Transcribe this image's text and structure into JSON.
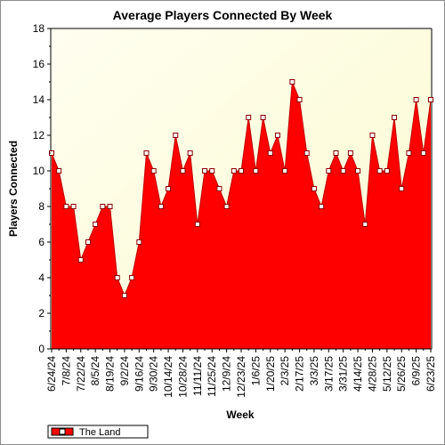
{
  "chart_data": {
    "type": "area",
    "title": "Average Players Connected By Week",
    "xlabel": "Week",
    "ylabel": "Players Connected",
    "ylim": [
      0,
      18
    ],
    "yticks": [
      0,
      2,
      4,
      6,
      8,
      10,
      12,
      14,
      16,
      18
    ],
    "x_tick_labels": [
      "6/24/24",
      "7/8/24",
      "7/22/24",
      "8/5/24",
      "8/19/24",
      "9/2/24",
      "9/16/24",
      "9/30/24",
      "10/14/24",
      "10/28/24",
      "11/11/24",
      "11/25/24",
      "12/9/24",
      "12/23/24",
      "1/6/25",
      "1/20/25",
      "2/3/25",
      "2/17/25",
      "3/3/25",
      "3/17/25",
      "3/31/25",
      "4/14/25",
      "4/28/25",
      "5/12/25",
      "5/26/25",
      "6/9/25",
      "6/23/25"
    ],
    "grid": false,
    "legend_position": "bottom-left",
    "series": [
      {
        "name": "The Land",
        "color": "#ff0000",
        "values": [
          11,
          10,
          8,
          8,
          5,
          6,
          7,
          8,
          8,
          4,
          3,
          4,
          6,
          11,
          10,
          8,
          9,
          12,
          10,
          11,
          7,
          10,
          10,
          9,
          8,
          10,
          10,
          13,
          10,
          13,
          11,
          12,
          10,
          15,
          14,
          11,
          9,
          8,
          10,
          11,
          10,
          11,
          10,
          7,
          12,
          10,
          10,
          13,
          9,
          11,
          14,
          11,
          14
        ]
      }
    ]
  }
}
